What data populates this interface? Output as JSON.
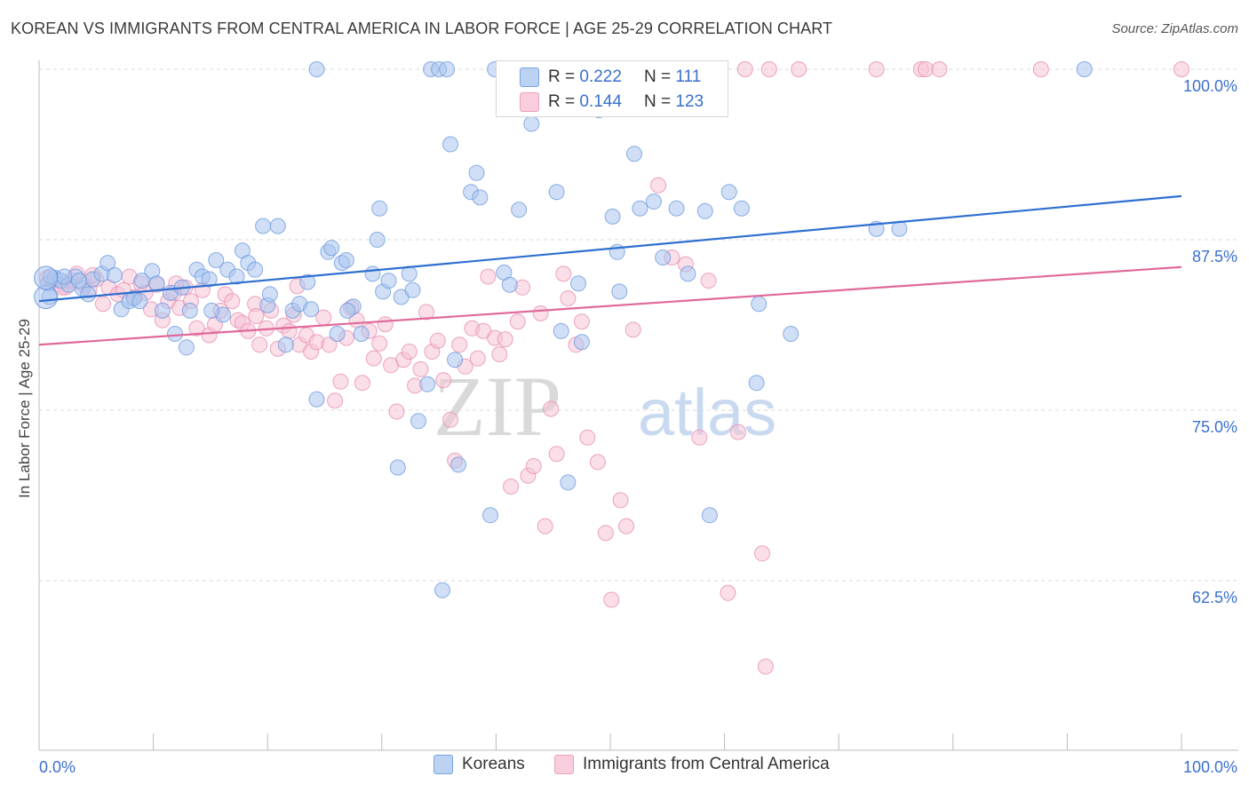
{
  "title": "KOREAN VS IMMIGRANTS FROM CENTRAL AMERICA IN LABOR FORCE | AGE 25-29 CORRELATION CHART",
  "source": "Source: ZipAtlas.com",
  "watermark": {
    "zip": "ZIP",
    "atlas": "atlas"
  },
  "legend_top": {
    "rows": [
      {
        "r_label": "R = ",
        "r_value": "0.222",
        "n_label": "N = ",
        "n_value": "111"
      },
      {
        "r_label": "R = ",
        "r_value": "0.144",
        "n_label": "N = ",
        "n_value": "123"
      }
    ]
  },
  "legend_bottom": {
    "koreans": "Koreans",
    "central_america": "Immigrants from Central America"
  },
  "colors": {
    "blue_fill": "#a9c4ee",
    "blue_stroke": "#6f9be0",
    "blue_line": "#2e6fd0",
    "pink_fill": "#f6c3d5",
    "pink_stroke": "#e88fb0",
    "pink_line": "#e0699a",
    "tick_label": "#3a6fcf",
    "grid": "#d9d9d9"
  },
  "chart_data": {
    "type": "scatter",
    "title": "KOREAN VS IMMIGRANTS FROM CENTRAL AMERICA IN LABOR FORCE | AGE 25-29 CORRELATION CHART",
    "xlabel": "",
    "ylabel": "In Labor Force | Age 25-29",
    "xlim": [
      0,
      100
    ],
    "ylim": [
      50,
      101.5
    ],
    "x_tick_labels": [
      "0.0%",
      "100.0%"
    ],
    "y_ticks": [
      {
        "value": 100,
        "label": "100.0%"
      },
      {
        "value": 87.5,
        "label": "87.5%"
      },
      {
        "value": 75,
        "label": "75.0%"
      },
      {
        "value": 62.5,
        "label": "62.5%"
      }
    ],
    "grid": "horizontal dashed",
    "legend_position": "bottom",
    "series": [
      {
        "name": "Koreans",
        "color": "#6f9be0",
        "trend": {
          "x": [
            0,
            100
          ],
          "y": [
            83.0,
            90.7
          ]
        },
        "points": [
          [
            0.8,
            84.3
          ],
          [
            0.9,
            83.3
          ],
          [
            1.4,
            84.7
          ],
          [
            1.9,
            84.5
          ],
          [
            2.6,
            84.2
          ],
          [
            3.2,
            84.8
          ],
          [
            3.8,
            83.9
          ],
          [
            4.3,
            83.5
          ],
          [
            4.7,
            84.6
          ],
          [
            5.5,
            85.0
          ],
          [
            6.0,
            85.8
          ],
          [
            6.6,
            84.9
          ],
          [
            7.2,
            82.4
          ],
          [
            7.9,
            83.0
          ],
          [
            8.3,
            83.2
          ],
          [
            9.0,
            84.5
          ],
          [
            9.9,
            85.2
          ],
          [
            10.3,
            84.3
          ],
          [
            10.8,
            82.3
          ],
          [
            11.5,
            83.6
          ],
          [
            11.9,
            80.6
          ],
          [
            12.5,
            84.0
          ],
          [
            12.9,
            79.6
          ],
          [
            13.2,
            82.3
          ],
          [
            13.8,
            85.3
          ],
          [
            14.3,
            84.8
          ],
          [
            14.9,
            84.6
          ],
          [
            15.5,
            86.0
          ],
          [
            16.1,
            82.0
          ],
          [
            16.5,
            85.3
          ],
          [
            17.3,
            84.8
          ],
          [
            17.8,
            86.7
          ],
          [
            18.3,
            85.8
          ],
          [
            18.9,
            85.3
          ],
          [
            19.6,
            88.5
          ],
          [
            20.0,
            82.7
          ],
          [
            20.2,
            83.5
          ],
          [
            20.9,
            88.5
          ],
          [
            21.6,
            79.8
          ],
          [
            22.2,
            82.3
          ],
          [
            22.8,
            82.8
          ],
          [
            23.5,
            84.4
          ],
          [
            23.8,
            82.4
          ],
          [
            24.3,
            75.8
          ],
          [
            24.3,
            100.0
          ],
          [
            25.3,
            86.6
          ],
          [
            25.6,
            86.9
          ],
          [
            26.1,
            80.6
          ],
          [
            26.5,
            85.8
          ],
          [
            26.9,
            86.0
          ],
          [
            27.5,
            82.6
          ],
          [
            28.2,
            80.6
          ],
          [
            29.2,
            85.0
          ],
          [
            29.6,
            87.5
          ],
          [
            29.8,
            89.8
          ],
          [
            30.1,
            83.7
          ],
          [
            30.6,
            84.5
          ],
          [
            31.4,
            70.8
          ],
          [
            31.7,
            83.3
          ],
          [
            32.4,
            85.0
          ],
          [
            32.7,
            83.8
          ],
          [
            33.2,
            74.2
          ],
          [
            34.0,
            76.9
          ],
          [
            34.3,
            100.0
          ],
          [
            35.0,
            100.0
          ],
          [
            35.3,
            61.8
          ],
          [
            35.7,
            100.0
          ],
          [
            36.0,
            94.5
          ],
          [
            36.4,
            78.7
          ],
          [
            36.7,
            71.0
          ],
          [
            37.8,
            91.0
          ],
          [
            38.3,
            92.4
          ],
          [
            38.6,
            90.6
          ],
          [
            39.5,
            67.3
          ],
          [
            39.9,
            100.0
          ],
          [
            40.7,
            85.1
          ],
          [
            41.2,
            84.2
          ],
          [
            42.0,
            89.7
          ],
          [
            43.1,
            96.0
          ],
          [
            45.3,
            91.0
          ],
          [
            45.7,
            80.8
          ],
          [
            46.3,
            69.7
          ],
          [
            47.2,
            84.3
          ],
          [
            47.5,
            80.0
          ],
          [
            49.0,
            97.0
          ],
          [
            50.2,
            89.2
          ],
          [
            50.6,
            86.6
          ],
          [
            50.8,
            83.7
          ],
          [
            52.1,
            93.8
          ],
          [
            52.6,
            89.8
          ],
          [
            53.8,
            90.3
          ],
          [
            54.6,
            86.2
          ],
          [
            55.8,
            89.8
          ],
          [
            56.8,
            85.0
          ],
          [
            58.3,
            89.6
          ],
          [
            58.7,
            67.3
          ],
          [
            59.6,
            100.0
          ],
          [
            60.4,
            91.0
          ],
          [
            61.5,
            89.8
          ],
          [
            62.8,
            77.0
          ],
          [
            63.0,
            82.8
          ],
          [
            65.8,
            80.6
          ],
          [
            73.3,
            88.3
          ],
          [
            75.3,
            88.3
          ],
          [
            91.5,
            100.0
          ],
          [
            1.0,
            84.8
          ],
          [
            2.2,
            84.8
          ],
          [
            3.5,
            84.5
          ],
          [
            8.8,
            83.0
          ],
          [
            15.1,
            82.3
          ],
          [
            27.0,
            82.3
          ]
        ]
      },
      {
        "name": "Immigrants from Central America",
        "color": "#e88fb0",
        "trend": {
          "x": [
            0,
            100
          ],
          "y": [
            79.8,
            85.5
          ]
        },
        "points": [
          [
            0.7,
            84.7
          ],
          [
            1.2,
            84.5
          ],
          [
            1.8,
            84.2
          ],
          [
            2.3,
            84.0
          ],
          [
            2.8,
            84.5
          ],
          [
            3.3,
            85.0
          ],
          [
            3.9,
            84.2
          ],
          [
            4.4,
            83.8
          ],
          [
            5.0,
            84.6
          ],
          [
            5.6,
            82.8
          ],
          [
            6.1,
            84.0
          ],
          [
            6.9,
            83.5
          ],
          [
            7.4,
            83.8
          ],
          [
            7.9,
            84.8
          ],
          [
            8.4,
            83.3
          ],
          [
            8.9,
            84.3
          ],
          [
            9.3,
            83.6
          ],
          [
            9.8,
            82.4
          ],
          [
            10.3,
            84.2
          ],
          [
            10.8,
            81.6
          ],
          [
            11.3,
            83.0
          ],
          [
            11.8,
            83.6
          ],
          [
            12.3,
            82.5
          ],
          [
            12.8,
            84.0
          ],
          [
            13.3,
            83.0
          ],
          [
            13.8,
            81.0
          ],
          [
            14.3,
            83.8
          ],
          [
            14.9,
            80.5
          ],
          [
            15.4,
            81.3
          ],
          [
            15.9,
            82.3
          ],
          [
            16.3,
            83.5
          ],
          [
            16.9,
            83.0
          ],
          [
            17.4,
            81.6
          ],
          [
            17.8,
            81.4
          ],
          [
            18.3,
            80.8
          ],
          [
            18.9,
            82.8
          ],
          [
            19.3,
            79.8
          ],
          [
            19.9,
            81.0
          ],
          [
            20.3,
            82.3
          ],
          [
            20.9,
            79.5
          ],
          [
            21.4,
            81.2
          ],
          [
            21.9,
            80.8
          ],
          [
            22.3,
            82.0
          ],
          [
            22.8,
            79.8
          ],
          [
            23.4,
            80.5
          ],
          [
            23.8,
            79.3
          ],
          [
            24.3,
            80.0
          ],
          [
            24.9,
            81.8
          ],
          [
            25.4,
            79.8
          ],
          [
            25.9,
            75.7
          ],
          [
            26.4,
            77.1
          ],
          [
            26.9,
            80.3
          ],
          [
            27.3,
            82.5
          ],
          [
            27.8,
            81.6
          ],
          [
            28.3,
            77.0
          ],
          [
            28.9,
            80.8
          ],
          [
            29.3,
            78.8
          ],
          [
            29.8,
            79.9
          ],
          [
            30.3,
            81.3
          ],
          [
            30.8,
            78.3
          ],
          [
            31.3,
            74.9
          ],
          [
            31.9,
            78.7
          ],
          [
            32.4,
            79.3
          ],
          [
            32.9,
            76.8
          ],
          [
            33.4,
            78.0
          ],
          [
            33.9,
            82.2
          ],
          [
            34.4,
            79.3
          ],
          [
            34.9,
            80.1
          ],
          [
            35.4,
            77.2
          ],
          [
            36.0,
            74.3
          ],
          [
            36.4,
            71.3
          ],
          [
            36.8,
            79.8
          ],
          [
            37.3,
            78.2
          ],
          [
            37.9,
            81.0
          ],
          [
            38.4,
            78.8
          ],
          [
            38.9,
            80.8
          ],
          [
            39.3,
            84.8
          ],
          [
            39.9,
            80.3
          ],
          [
            40.3,
            79.1
          ],
          [
            40.8,
            80.2
          ],
          [
            41.3,
            69.4
          ],
          [
            41.9,
            81.5
          ],
          [
            42.3,
            84.0
          ],
          [
            42.8,
            70.2
          ],
          [
            43.3,
            70.9
          ],
          [
            43.9,
            82.1
          ],
          [
            44.3,
            66.5
          ],
          [
            44.8,
            75.1
          ],
          [
            45.3,
            71.8
          ],
          [
            45.9,
            85.0
          ],
          [
            46.3,
            83.2
          ],
          [
            47.0,
            79.8
          ],
          [
            47.5,
            81.5
          ],
          [
            48.0,
            73.0
          ],
          [
            48.9,
            71.2
          ],
          [
            49.6,
            66.0
          ],
          [
            50.1,
            61.1
          ],
          [
            50.9,
            68.4
          ],
          [
            51.4,
            66.5
          ],
          [
            52.0,
            80.9
          ],
          [
            54.2,
            91.5
          ],
          [
            55.4,
            86.2
          ],
          [
            56.6,
            85.7
          ],
          [
            57.8,
            73.0
          ],
          [
            58.6,
            84.5
          ],
          [
            60.3,
            61.6
          ],
          [
            61.2,
            73.4
          ],
          [
            63.3,
            64.5
          ],
          [
            63.6,
            56.2
          ],
          [
            61.8,
            100.0
          ],
          [
            63.9,
            100.0
          ],
          [
            66.5,
            100.0
          ],
          [
            73.3,
            100.0
          ],
          [
            77.2,
            100.0
          ],
          [
            77.6,
            100.0
          ],
          [
            78.8,
            100.0
          ],
          [
            87.7,
            100.0
          ],
          [
            100.0,
            100.0
          ],
          [
            2.0,
            84.0
          ],
          [
            4.7,
            84.9
          ],
          [
            12.0,
            84.3
          ],
          [
            19.0,
            81.9
          ],
          [
            22.6,
            84.1
          ]
        ]
      }
    ]
  }
}
